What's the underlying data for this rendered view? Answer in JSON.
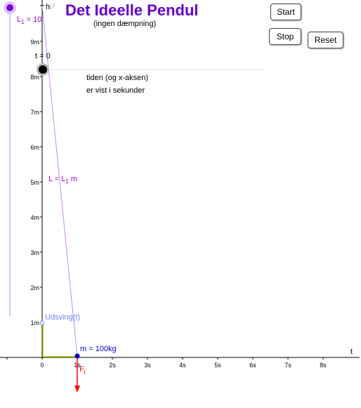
{
  "title": "Det Ideelle Pendul",
  "subtitle": "(ingen dæmpning)",
  "buttons": {
    "start": "Start",
    "stop": "Stop",
    "reset": "Reset"
  },
  "slider": {
    "label": "L",
    "subscript": "1",
    "value_text": " = 10",
    "value": 10
  },
  "time_label": "t = 0",
  "axis_top_label": "h",
  "axis_top_faded": "pf",
  "x_axis_label": "t",
  "note_line1": "tiden (og x-aksen)",
  "note_line2": "er vist i sekunder",
  "length_label": {
    "prefix": "L = L",
    "subscript": "1",
    "suffix": " m"
  },
  "udsving_label": "Udsving(t)",
  "mass_label": "m = 100kg",
  "force_label": {
    "text": "F",
    "subscript": "t"
  },
  "colors": {
    "title": "#6600cc",
    "purple": "#9900cc",
    "string": "#cc88ff",
    "udsving": "#6688ff",
    "mass": "#0000cc",
    "force": "#ff0000",
    "ground": "#99cc00",
    "slider_track": "#ddbbff"
  },
  "axes": {
    "y_ticks": [
      {
        "label": "1m",
        "value": 1
      },
      {
        "label": "2m",
        "value": 2
      },
      {
        "label": "3m",
        "value": 3
      },
      {
        "label": "4m",
        "value": 4
      },
      {
        "label": "5m",
        "value": 5
      },
      {
        "label": "6m",
        "value": 6
      },
      {
        "label": "7m",
        "value": 7
      },
      {
        "label": "8m",
        "value": 8
      },
      {
        "label": "9m",
        "value": 9
      }
    ],
    "x_ticks": [
      {
        "label": "0",
        "value": 0
      },
      {
        "label": "1s",
        "value": 1
      },
      {
        "label": "2s",
        "value": 2
      },
      {
        "label": "3s",
        "value": 3
      },
      {
        "label": "4s",
        "value": 4
      },
      {
        "label": "5s",
        "value": 5
      },
      {
        "label": "6s",
        "value": 6
      },
      {
        "label": "7s",
        "value": 7
      },
      {
        "label": "8s",
        "value": 8
      }
    ]
  }
}
